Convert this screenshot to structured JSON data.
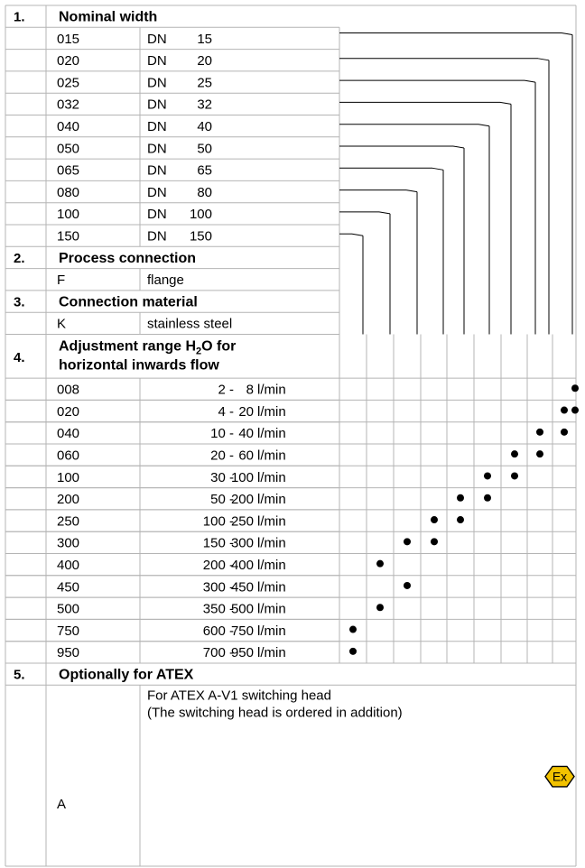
{
  "sections": [
    {
      "number": "1.",
      "title": "Nominal width"
    },
    {
      "number": "2.",
      "title": "Process connection"
    },
    {
      "number": "3.",
      "title": "Connection material"
    },
    {
      "number": "4.",
      "title_line1": "Adjustment range H",
      "title_sub": "2",
      "title_line1_end": "O for",
      "title_line2": "horizontal inwards flow"
    },
    {
      "number": "5.",
      "title": "Optionally for ATEX"
    }
  ],
  "nominal_widths": [
    {
      "code": "015",
      "dn": "DN",
      "size": "15"
    },
    {
      "code": "020",
      "dn": "DN",
      "size": "20"
    },
    {
      "code": "025",
      "dn": "DN",
      "size": "25"
    },
    {
      "code": "032",
      "dn": "DN",
      "size": "32"
    },
    {
      "code": "040",
      "dn": "DN",
      "size": "40"
    },
    {
      "code": "050",
      "dn": "DN",
      "size": "50"
    },
    {
      "code": "065",
      "dn": "DN",
      "size": "65"
    },
    {
      "code": "080",
      "dn": "DN",
      "size": "80"
    },
    {
      "code": "100",
      "dn": "DN",
      "size": "100"
    },
    {
      "code": "150",
      "dn": "DN",
      "size": "150"
    }
  ],
  "process_connection": {
    "code": "F",
    "label": "flange"
  },
  "connection_material": {
    "code": "K",
    "label": "stainless steel"
  },
  "ranges": [
    {
      "code": "008",
      "from": "2 -",
      "to": "8",
      "unit": "l/min",
      "dots": [
        9
      ]
    },
    {
      "code": "020",
      "from": "4 -",
      "to": "20",
      "unit": "l/min",
      "dots": [
        8,
        9
      ]
    },
    {
      "code": "040",
      "from": "10 -",
      "to": "40",
      "unit": "l/min",
      "dots": [
        7,
        8
      ]
    },
    {
      "code": "060",
      "from": "20 -",
      "to": "60",
      "unit": "l/min",
      "dots": [
        6,
        7
      ]
    },
    {
      "code": "100",
      "from": "30 -",
      "to": "100",
      "unit": "l/min",
      "dots": [
        5,
        6
      ]
    },
    {
      "code": "200",
      "from": "50 -",
      "to": "200",
      "unit": "l/min",
      "dots": [
        4,
        5
      ]
    },
    {
      "code": "250",
      "from": "100 -",
      "to": "250",
      "unit": "l/min",
      "dots": [
        3,
        4
      ]
    },
    {
      "code": "300",
      "from": "150 -",
      "to": "300",
      "unit": "l/min",
      "dots": [
        2,
        3
      ]
    },
    {
      "code": "400",
      "from": "200 -",
      "to": "400",
      "unit": "l/min",
      "dots": [
        1
      ]
    },
    {
      "code": "450",
      "from": "300 -",
      "to": "450",
      "unit": "l/min",
      "dots": [
        2
      ]
    },
    {
      "code": "500",
      "from": "350 -",
      "to": "500",
      "unit": "l/min",
      "dots": [
        1
      ]
    },
    {
      "code": "750",
      "from": "600 -",
      "to": "750",
      "unit": "l/min",
      "dots": [
        0
      ]
    },
    {
      "code": "950",
      "from": "700 -",
      "to": "950",
      "unit": "l/min",
      "dots": [
        0
      ]
    }
  ],
  "atex": {
    "code": "A",
    "line1": "For ATEX A-V1 switching head",
    "line2": "(The switching head is ordered in addition)",
    "icon": "ex-hexagon-icon",
    "icon_text": "Ex",
    "icon_fill": "#f2c200"
  }
}
